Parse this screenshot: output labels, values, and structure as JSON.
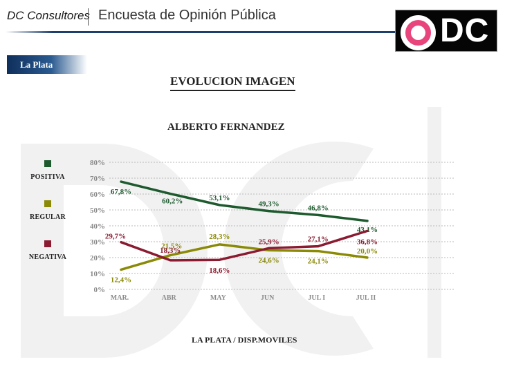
{
  "header": {
    "brand": "DC Consultores",
    "survey_title": "Encuesta de Opinión Pública",
    "logo_text": "DC"
  },
  "region_tab": {
    "label": "La Plata"
  },
  "chart_data": {
    "type": "line",
    "title": "EVOLUCION IMAGEN",
    "subtitle": "ALBERTO FERNANDEZ",
    "footer": "LA PLATA / DISP.MOVILES",
    "categories": [
      "MAR.",
      "ABR",
      "MAY",
      "JUN",
      "JUL I",
      "JUL II"
    ],
    "ylim": [
      0,
      80
    ],
    "yticks": [
      0,
      10,
      20,
      30,
      40,
      50,
      60,
      70,
      80
    ],
    "ytick_labels": [
      "0%",
      "10%",
      "20%",
      "30%",
      "40%",
      "50%",
      "60%",
      "70%",
      "80%"
    ],
    "grid": true,
    "legend_position": "left",
    "series": [
      {
        "name": "POSITIVA",
        "color": "#1d5a2e",
        "values": [
          67.8,
          60.2,
          53.1,
          49.3,
          46.8,
          43.1
        ],
        "labels": [
          "67,8%",
          "60,2%",
          "53,1%",
          "49,3%",
          "46,8%",
          "43,1%"
        ]
      },
      {
        "name": "REGULAR",
        "color": "#8a8a06",
        "values": [
          12.4,
          21.5,
          28.3,
          24.6,
          24.1,
          20.0
        ],
        "labels": [
          "12,4%",
          "21,5%",
          "28,3%",
          "24,6%",
          "24,1%",
          "20,0%"
        ]
      },
      {
        "name": "NEGATIVA",
        "color": "#8a1b30",
        "values": [
          29.7,
          18.3,
          18.6,
          25.9,
          27.1,
          36.8
        ],
        "labels": [
          "29,7%",
          "18,3%",
          "18,6%",
          "25,9%",
          "27,1%",
          "36,8%"
        ]
      }
    ]
  }
}
